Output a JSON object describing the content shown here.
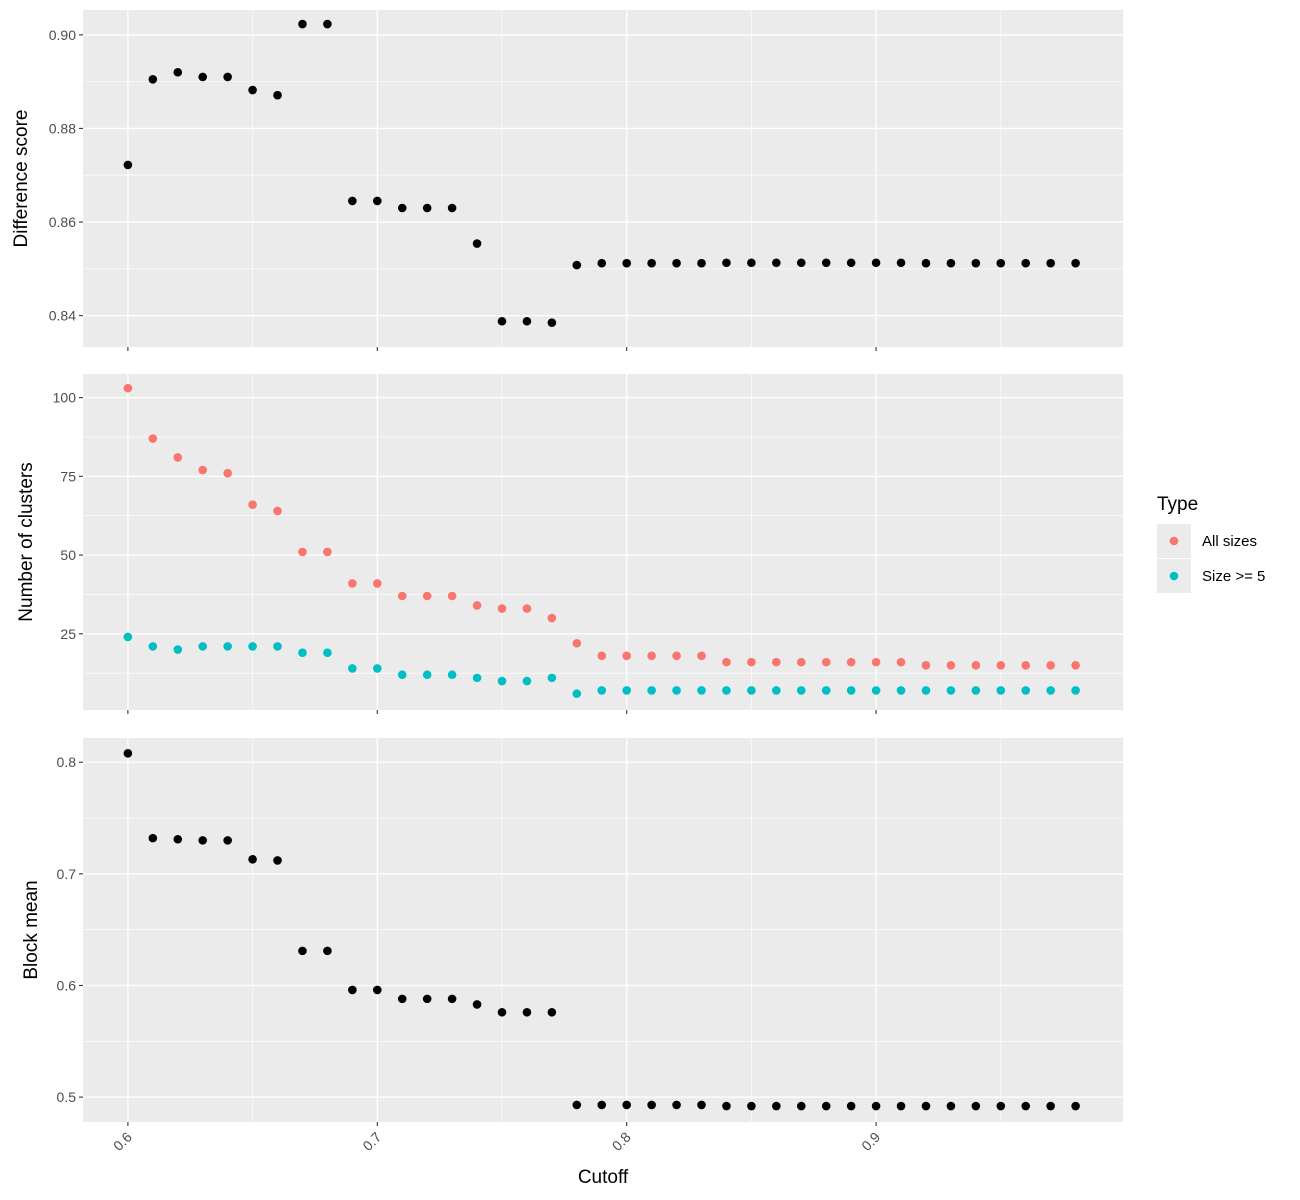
{
  "chart_data": {
    "type": "scatter",
    "x_label": "Cutoff",
    "x_range": [
      0.582,
      0.999
    ],
    "x_ticks": [
      0.6,
      0.7,
      0.8,
      0.9
    ],
    "x_tick_labels": [
      "0.6",
      "0.7",
      "0.8",
      "0.9"
    ],
    "x": [
      0.6,
      0.61,
      0.62,
      0.63,
      0.64,
      0.65,
      0.66,
      0.67,
      0.68,
      0.69,
      0.7,
      0.71,
      0.72,
      0.73,
      0.74,
      0.75,
      0.76,
      0.77,
      0.78,
      0.79,
      0.8,
      0.81,
      0.82,
      0.83,
      0.84,
      0.85,
      0.86,
      0.87,
      0.88,
      0.89,
      0.9,
      0.91,
      0.92,
      0.93,
      0.94,
      0.95,
      0.96,
      0.97,
      0.98
    ],
    "panels": [
      {
        "ylabel": "Difference score",
        "y_range": [
          0.8333,
          0.9053
        ],
        "y_ticks": [
          0.84,
          0.86,
          0.88,
          0.9
        ],
        "y_tick_labels": [
          "0.84",
          "0.86",
          "0.88",
          "0.90"
        ],
        "series": [
          {
            "color": "#000000",
            "values": [
              0.8722,
              0.8905,
              0.892,
              0.891,
              0.891,
              0.8882,
              0.8871,
              0.9023,
              0.9023,
              0.8645,
              0.8645,
              0.863,
              0.863,
              0.863,
              0.8554,
              0.8388,
              0.8388,
              0.8385,
              0.8508,
              0.8512,
              0.8512,
              0.8512,
              0.8512,
              0.8512,
              0.8513,
              0.8513,
              0.8513,
              0.8513,
              0.8513,
              0.8513,
              0.8513,
              0.8513,
              0.8512,
              0.8512,
              0.8512,
              0.8512,
              0.8512,
              0.8512,
              0.8512
            ]
          }
        ]
      },
      {
        "ylabel": "Number of clusters",
        "y_range": [
          0.8,
          107.5
        ],
        "y_ticks": [
          25,
          50,
          75,
          100
        ],
        "y_tick_labels": [
          "25",
          "50",
          "75",
          "100"
        ],
        "series": [
          {
            "name": "All sizes",
            "color": "#F8766D",
            "values": [
              103,
              87,
              81,
              77,
              76,
              66,
              64,
              51,
              51,
              41,
              41,
              37,
              37,
              37,
              34,
              33,
              33,
              30,
              22,
              18,
              18,
              18,
              18,
              18,
              16,
              16,
              16,
              16,
              16,
              16,
              16,
              16,
              15,
              15,
              15,
              15,
              15,
              15,
              15
            ]
          },
          {
            "name": "Size >= 5",
            "color": "#00BFC4",
            "values": [
              24,
              21,
              20,
              21,
              21,
              21,
              21,
              19,
              19,
              14,
              14,
              12,
              12,
              12,
              11,
              10,
              10,
              11,
              6,
              7,
              7,
              7,
              7,
              7,
              7,
              7,
              7,
              7,
              7,
              7,
              7,
              7,
              7,
              7,
              7,
              7,
              7,
              7,
              7
            ]
          }
        ]
      },
      {
        "ylabel": "Block mean",
        "y_range": [
          0.4777,
          0.8217
        ],
        "y_ticks": [
          0.5,
          0.6,
          0.7,
          0.8
        ],
        "y_tick_labels": [
          "0.5",
          "0.6",
          "0.7",
          "0.8"
        ],
        "series": [
          {
            "color": "#000000",
            "values": [
              0.808,
              0.732,
              0.731,
              0.73,
              0.73,
              0.713,
              0.712,
              0.631,
              0.631,
              0.596,
              0.596,
              0.588,
              0.588,
              0.588,
              0.583,
              0.576,
              0.576,
              0.576,
              0.493,
              0.493,
              0.493,
              0.493,
              0.493,
              0.493,
              0.492,
              0.492,
              0.492,
              0.492,
              0.492,
              0.492,
              0.492,
              0.492,
              0.492,
              0.492,
              0.492,
              0.492,
              0.492,
              0.492,
              0.492
            ]
          }
        ]
      }
    ],
    "legend": {
      "title": "Type",
      "position": "right",
      "entries": [
        {
          "label": "All sizes",
          "color": "#F8766D"
        },
        {
          "label": "Size >= 5",
          "color": "#00BFC4"
        }
      ]
    },
    "grid": true,
    "background": "#EBEBEB"
  }
}
